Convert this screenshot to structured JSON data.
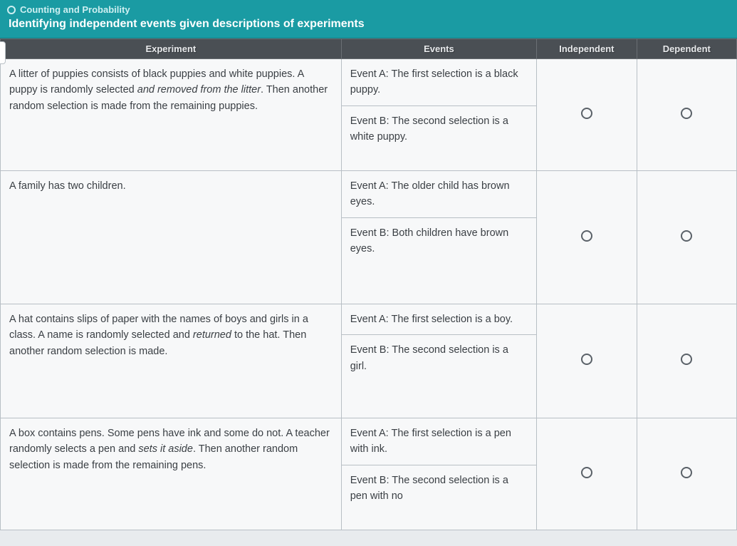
{
  "header": {
    "breadcrumb": "Counting and Probability",
    "title": "Identifying independent events given descriptions of experiments"
  },
  "columns": {
    "experiment": "Experiment",
    "events": "Events",
    "independent": "Independent",
    "dependent": "Dependent"
  },
  "rows": [
    {
      "experiment_html": "A litter of puppies consists of black puppies and white puppies. A puppy is randomly selected <em>and removed from the litter</em>. Then another random selection is made from the remaining puppies.",
      "event_a": "Event A: The first selection is a black puppy.",
      "event_b": "Event B: The second selection is a white puppy."
    },
    {
      "experiment_html": "A family has two children.",
      "event_a": "Event A: The older child has brown eyes.",
      "event_b": "Event B: Both children have brown eyes."
    },
    {
      "experiment_html": "A hat contains slips of paper with the names of boys and girls in a class. A name is randomly selected and <em>returned</em> to the hat. Then another random selection is made.",
      "event_a": "Event A: The first selection is a boy.",
      "event_b": "Event B: The second selection is a girl."
    },
    {
      "experiment_html": "A box contains pens. Some pens have ink and some do not. A teacher randomly selects a pen and <em>sets it aside</em>. Then another random selection is made from the remaining pens.",
      "event_a": "Event A: The first selection is a pen with ink.",
      "event_b": "Event B: The second selection is a pen with no"
    }
  ],
  "styling": {
    "header_bg": "#1a9ba3",
    "header_text": "#ffffff",
    "th_bg": "#4a4f54",
    "th_text": "#e8eaec",
    "cell_bg": "#f7f8f9",
    "border_color": "#b8bfc5",
    "body_text": "#3a3f44",
    "radio_border": "#5a6168",
    "font_size_body": 14.5,
    "font_size_header": 16,
    "font_size_th": 13
  }
}
